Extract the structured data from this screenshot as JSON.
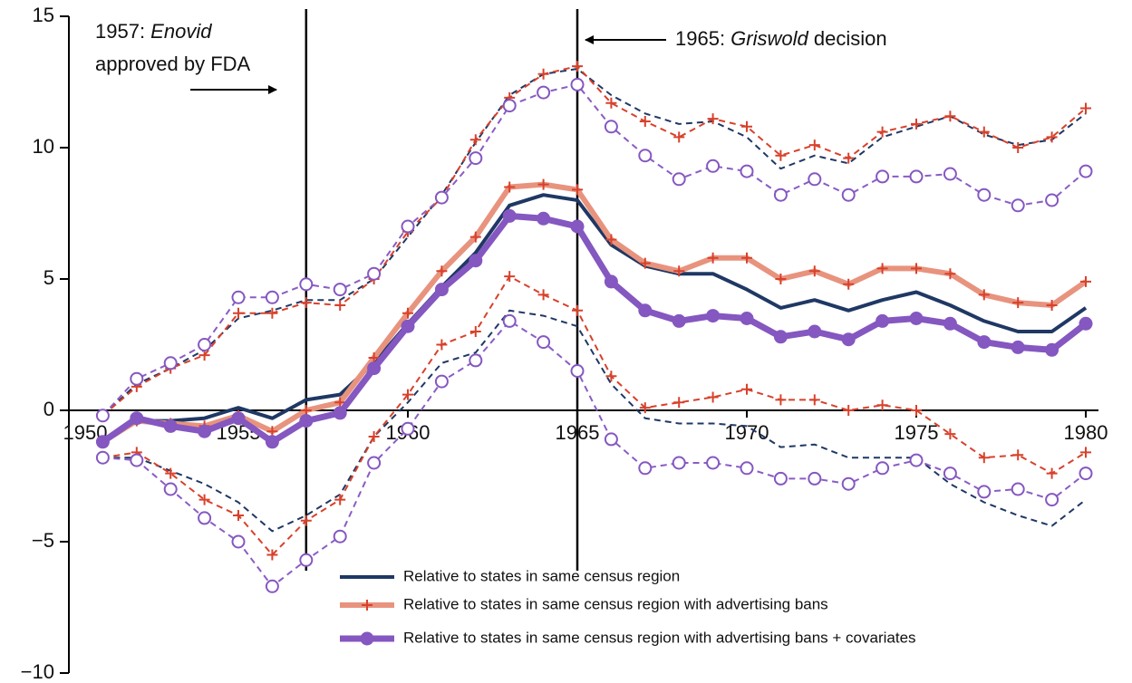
{
  "chart_data": {
    "type": "line",
    "x": [
      1951,
      1952,
      1953,
      1954,
      1955,
      1956,
      1957,
      1958,
      1959,
      1960,
      1961,
      1962,
      1963,
      1964,
      1965,
      1966,
      1967,
      1968,
      1969,
      1970,
      1971,
      1972,
      1973,
      1974,
      1975,
      1976,
      1977,
      1978,
      1979,
      1980
    ],
    "xlim": [
      1950,
      1980
    ],
    "xticks": [
      1950,
      1955,
      1960,
      1965,
      1970,
      1975,
      1980
    ],
    "ylim": [
      -10,
      15
    ],
    "yticks": [
      {
        "value": -10,
        "label": "−10"
      },
      {
        "value": -5,
        "label": "−5"
      },
      0,
      5,
      10,
      15
    ],
    "legend": "lower center",
    "vlines": [
      1957,
      1965
    ],
    "annotations": [
      {
        "lines": [
          [
            "1957: ",
            "Enovid"
          ],
          [
            "approved by FDA"
          ]
        ]
      },
      {
        "lines": [
          [
            "1965: ",
            "Griswold",
            " decision"
          ]
        ]
      }
    ],
    "series": [
      {
        "name": "Relative to states in same census region",
        "color": "#1f3864",
        "ci_color": "#1f3864",
        "marker": "none",
        "line_width": 4,
        "values": [
          -1.2,
          -0.4,
          -0.4,
          -0.3,
          0.1,
          -0.3,
          0.4,
          0.6,
          1.8,
          3.3,
          4.7,
          6.0,
          7.8,
          8.2,
          8.0,
          6.3,
          5.5,
          5.2,
          5.2,
          4.6,
          3.9,
          4.2,
          3.8,
          4.2,
          4.5,
          4.0,
          3.4,
          3.0,
          3.0,
          3.9
        ],
        "upper": [
          -0.2,
          1.0,
          1.6,
          2.3,
          3.5,
          3.8,
          4.2,
          4.2,
          5.0,
          6.6,
          8.2,
          10.2,
          12.0,
          12.8,
          13.0,
          12.0,
          11.3,
          10.9,
          11.0,
          10.4,
          9.2,
          9.7,
          9.4,
          10.4,
          10.8,
          11.2,
          10.5,
          10.1,
          10.3,
          11.3
        ],
        "lower": [
          -1.8,
          -1.8,
          -2.3,
          -2.8,
          -3.5,
          -4.6,
          -4.0,
          -3.2,
          -1.0,
          0.3,
          1.8,
          2.2,
          3.8,
          3.6,
          3.2,
          1.0,
          -0.3,
          -0.5,
          -0.5,
          -0.6,
          -1.4,
          -1.3,
          -1.8,
          -1.8,
          -1.8,
          -2.8,
          -3.5,
          -4.0,
          -4.4,
          -3.4
        ]
      },
      {
        "name": "Relative to states in same census region with advertising bans",
        "color": "#e8937e",
        "ci_color": "#d8412b",
        "marker": "plus",
        "marker_color": "#d8412b",
        "line_width": 6,
        "values": [
          -1.2,
          -0.4,
          -0.5,
          -0.6,
          -0.2,
          -0.8,
          0.0,
          0.3,
          2.0,
          3.7,
          5.3,
          6.6,
          8.5,
          8.6,
          8.4,
          6.5,
          5.6,
          5.3,
          5.8,
          5.8,
          5.0,
          5.3,
          4.8,
          5.4,
          5.4,
          5.2,
          4.4,
          4.1,
          4.0,
          4.9
        ],
        "upper": [
          -0.2,
          0.9,
          1.6,
          2.1,
          3.7,
          3.7,
          4.1,
          4.0,
          5.0,
          6.8,
          8.1,
          10.3,
          11.9,
          12.8,
          13.1,
          11.7,
          11.0,
          10.4,
          11.1,
          10.8,
          9.7,
          10.1,
          9.6,
          10.6,
          10.9,
          11.2,
          10.6,
          10.0,
          10.4,
          11.5
        ],
        "lower": [
          -1.8,
          -1.6,
          -2.4,
          -3.4,
          -4.0,
          -5.5,
          -4.2,
          -3.4,
          -1.0,
          0.6,
          2.5,
          3.0,
          5.1,
          4.4,
          3.8,
          1.3,
          0.1,
          0.3,
          0.5,
          0.8,
          0.4,
          0.4,
          0.0,
          0.2,
          0.0,
          -0.9,
          -1.8,
          -1.7,
          -2.4,
          -1.6
        ]
      },
      {
        "name": "Relative to states in same census region with advertising bans + covariates",
        "color": "#8557c0",
        "ci_color": "#8a5cc4",
        "marker": "circle",
        "marker_color": "#8557c0",
        "line_width": 7,
        "values": [
          -1.2,
          -0.3,
          -0.6,
          -0.8,
          -0.3,
          -1.2,
          -0.4,
          -0.1,
          1.6,
          3.2,
          4.6,
          5.7,
          7.4,
          7.3,
          7.0,
          4.9,
          3.8,
          3.4,
          3.6,
          3.5,
          2.8,
          3.0,
          2.7,
          3.4,
          3.5,
          3.3,
          2.6,
          2.4,
          2.3,
          3.3
        ],
        "upper": [
          -0.2,
          1.2,
          1.8,
          2.5,
          4.3,
          4.3,
          4.8,
          4.6,
          5.2,
          7.0,
          8.1,
          9.6,
          11.6,
          12.1,
          12.4,
          10.8,
          9.7,
          8.8,
          9.3,
          9.1,
          8.2,
          8.8,
          8.2,
          8.9,
          8.9,
          9.0,
          8.2,
          7.8,
          8.0,
          9.1
        ],
        "lower": [
          -1.8,
          -1.9,
          -3.0,
          -4.1,
          -5.0,
          -6.7,
          -5.7,
          -4.8,
          -2.0,
          -0.7,
          1.1,
          1.9,
          3.4,
          2.6,
          1.5,
          -1.1,
          -2.2,
          -2.0,
          -2.0,
          -2.2,
          -2.6,
          -2.6,
          -2.8,
          -2.2,
          -1.9,
          -2.4,
          -3.1,
          -3.0,
          -3.4,
          -2.4
        ]
      }
    ]
  }
}
